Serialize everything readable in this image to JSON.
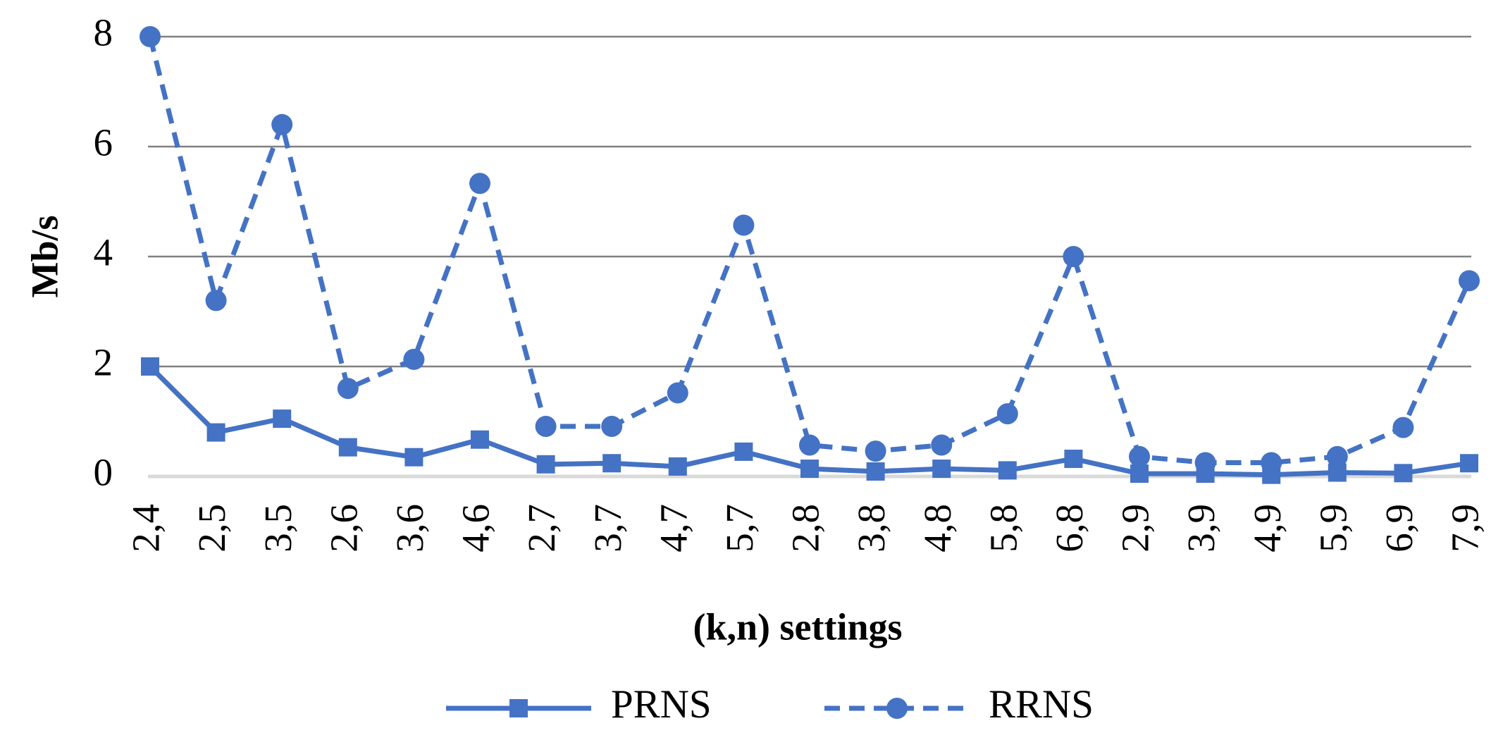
{
  "chart_data": {
    "type": "line",
    "x_label": "(k,n) settings",
    "y_label": "Mb/s",
    "categories": [
      "2,4",
      "2,5",
      "3,5",
      "2,6",
      "3,6",
      "4,6",
      "2,7",
      "3,7",
      "4,7",
      "5,7",
      "2,8",
      "3,8",
      "4,8",
      "5,8",
      "6,8",
      "2,9",
      "3,9",
      "4,9",
      "5,9",
      "6,9",
      "7,9"
    ],
    "series": [
      {
        "name": "PRNS",
        "color": "#4472c4",
        "marker": "square",
        "line_style": "solid",
        "values": [
          2.0,
          0.8,
          1.05,
          0.53,
          0.35,
          0.67,
          0.22,
          0.24,
          0.18,
          0.45,
          0.14,
          0.09,
          0.14,
          0.11,
          0.32,
          0.05,
          0.05,
          0.03,
          0.07,
          0.06,
          0.24
        ]
      },
      {
        "name": "RRNS",
        "color": "#4472c4",
        "marker": "circle",
        "line_style": "dashed",
        "values": [
          8.0,
          3.2,
          6.4,
          1.6,
          2.13,
          5.33,
          0.91,
          0.91,
          1.52,
          4.57,
          0.57,
          0.46,
          0.57,
          1.14,
          4.0,
          0.36,
          0.25,
          0.25,
          0.36,
          0.89,
          3.56
        ]
      }
    ],
    "ylim": [
      0,
      8
    ],
    "yticks": [
      0,
      2,
      4,
      6,
      8
    ],
    "grid": true,
    "legend": "bottom"
  }
}
